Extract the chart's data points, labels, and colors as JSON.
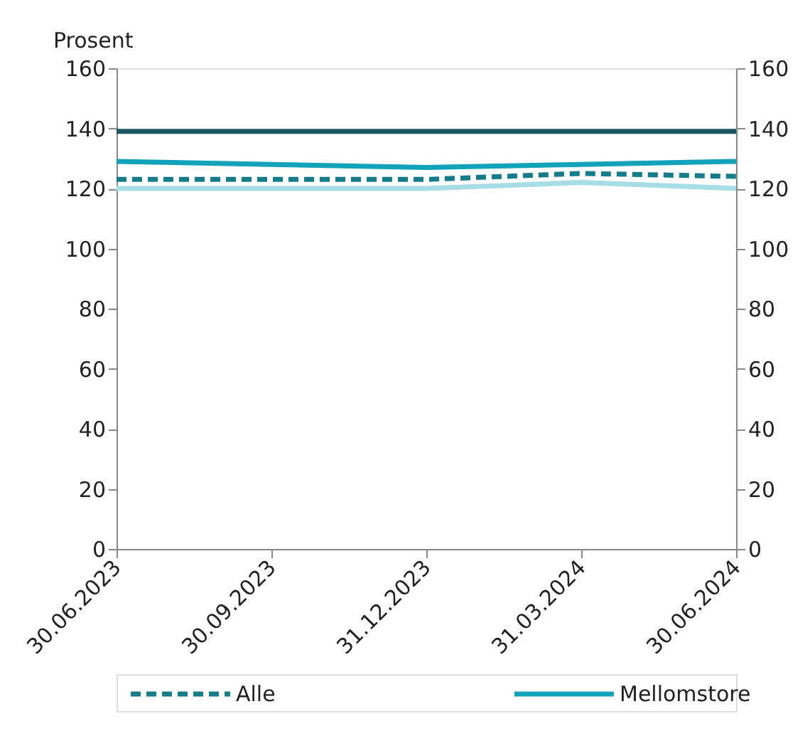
{
  "chart_data": {
    "type": "line",
    "ylabel": "Prosent",
    "categories": [
      "30.06.2023",
      "30.09.2023",
      "31.12.2023",
      "31.03.2024",
      "30.06.2024"
    ],
    "series": [
      {
        "color": "#1b5561",
        "values": [
          139,
          139,
          139,
          139,
          139
        ]
      },
      {
        "name": "Alle",
        "color": "#167c89",
        "line_style": "dashed",
        "values": [
          123,
          123,
          123,
          125,
          124
        ]
      },
      {
        "name": "Mellomstore",
        "color": "#12a3bb",
        "values": [
          129,
          128,
          127,
          128,
          129
        ]
      },
      {
        "color": "#a6dde6",
        "values": [
          120,
          120,
          120,
          122,
          120
        ]
      }
    ],
    "ylim": [
      0,
      160
    ],
    "yticks": [
      0,
      20,
      40,
      60,
      80,
      100,
      120,
      140,
      160
    ],
    "y2lim": [
      0,
      160
    ],
    "y2ticks": [
      0,
      20,
      40,
      60,
      80,
      100,
      120,
      140,
      160
    ],
    "grid": false,
    "legend": "bottom",
    "marker": "none"
  }
}
